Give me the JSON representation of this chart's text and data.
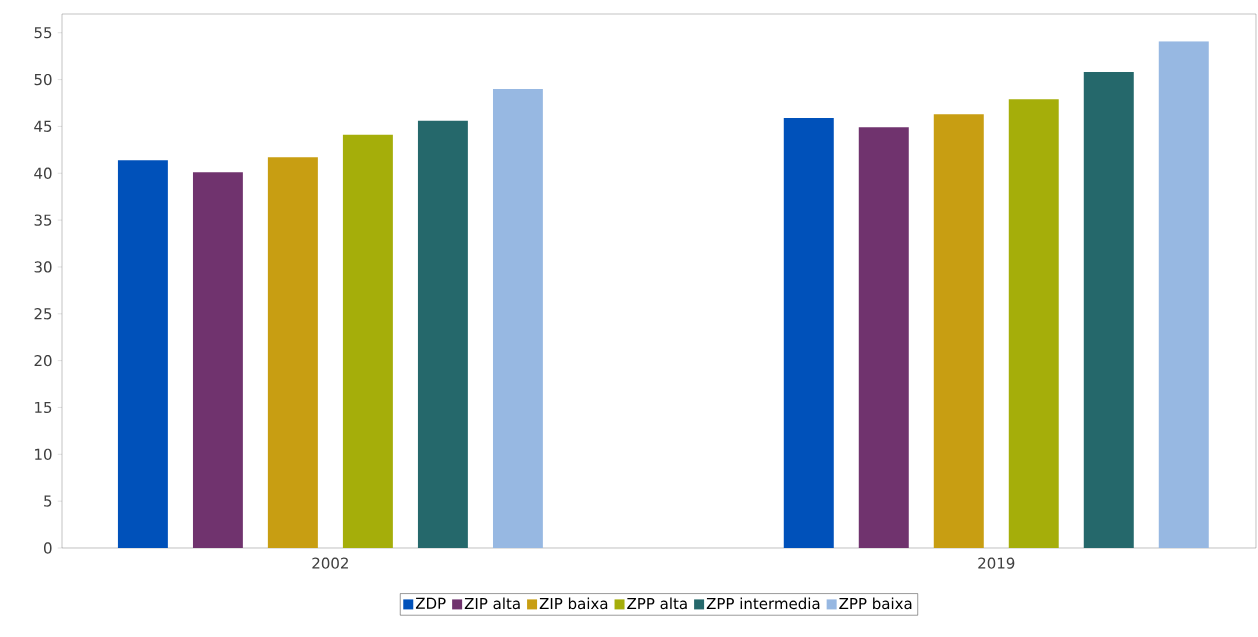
{
  "chart_data": {
    "type": "bar",
    "categories": [
      "2002",
      "2019"
    ],
    "series": [
      {
        "name": "ZDP",
        "color": "#0051ba",
        "values": [
          41.4,
          45.9
        ]
      },
      {
        "name": "ZIP alta",
        "color": "#70336e",
        "values": [
          40.1,
          44.9
        ]
      },
      {
        "name": "ZIP baixa",
        "color": "#c89e12",
        "values": [
          41.7,
          46.3
        ]
      },
      {
        "name": "ZPP alta",
        "color": "#a5ae0a",
        "values": [
          44.1,
          47.9
        ]
      },
      {
        "name": "ZPP intermedia",
        "color": "#25686b",
        "values": [
          45.6,
          50.8
        ]
      },
      {
        "name": "ZPP baixa",
        "color": "#97b8e2",
        "values": [
          49.0,
          54.1
        ]
      }
    ],
    "ylim": [
      0,
      57
    ],
    "yticks": [
      0,
      5,
      10,
      15,
      20,
      25,
      30,
      35,
      40,
      45,
      50,
      55
    ],
    "legend": "bottom"
  }
}
